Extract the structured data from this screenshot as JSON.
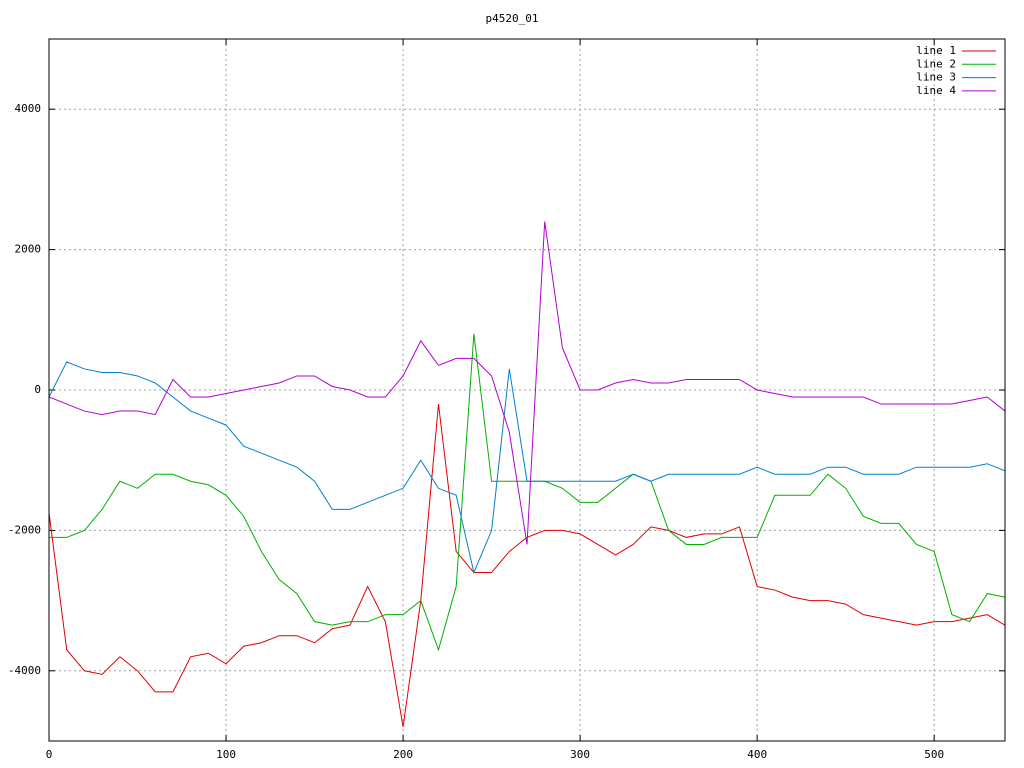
{
  "chart_data": {
    "type": "line",
    "title": "p4520_01",
    "x": [
      0,
      10,
      20,
      30,
      40,
      50,
      60,
      70,
      80,
      90,
      100,
      110,
      120,
      130,
      140,
      150,
      160,
      170,
      180,
      190,
      200,
      210,
      220,
      230,
      240,
      250,
      260,
      270,
      280,
      290,
      300,
      310,
      320,
      330,
      340,
      350,
      360,
      370,
      380,
      390,
      400,
      410,
      420,
      430,
      440,
      450,
      460,
      470,
      480,
      490,
      500,
      510,
      520,
      530,
      540
    ],
    "series": [
      {
        "name": "line 1",
        "color": "#e00000",
        "values": [
          -1750,
          -3700,
          -4000,
          -4050,
          -3800,
          -4000,
          -4300,
          -4300,
          -3800,
          -3750,
          -3900,
          -3650,
          -3600,
          -3500,
          -3500,
          -3600,
          -3400,
          -3350,
          -2800,
          -3300,
          -4800,
          -3000,
          -200,
          -2300,
          -2600,
          -2600,
          -2300,
          -2100,
          -2000,
          -2000,
          -2050,
          -2200,
          -2350,
          -2200,
          -1950,
          -2000,
          -2100,
          -2050,
          -2050,
          -1950,
          -2800,
          -2850,
          -2950,
          -3000,
          -3000,
          -3050,
          -3200,
          -3250,
          -3300,
          -3350,
          -3300,
          -3300,
          -3250,
          -3200,
          -3350
        ]
      },
      {
        "name": "line 2",
        "color": "#00b000",
        "values": [
          -2100,
          -2100,
          -2000,
          -1700,
          -1300,
          -1400,
          -1200,
          -1200,
          -1300,
          -1350,
          -1500,
          -1800,
          -2300,
          -2700,
          -2900,
          -3300,
          -3350,
          -3300,
          -3300,
          -3200,
          -3200,
          -3000,
          -3700,
          -2800,
          800,
          -1300,
          -1300,
          -1300,
          -1300,
          -1400,
          -1600,
          -1600,
          -1400,
          -1200,
          -1300,
          -2000,
          -2200,
          -2200,
          -2100,
          -2100,
          -2100,
          -1500,
          -1500,
          -1500,
          -1200,
          -1400,
          -1800,
          -1900,
          -1900,
          -2200,
          -2300,
          -3200,
          -3300,
          -2900,
          -2950
        ]
      },
      {
        "name": "line 3",
        "color": "#0080d0",
        "values": [
          -100,
          400,
          300,
          250,
          250,
          200,
          100,
          -100,
          -300,
          -400,
          -500,
          -800,
          -900,
          -1000,
          -1100,
          -1300,
          -1700,
          -1700,
          -1600,
          -1500,
          -1400,
          -1000,
          -1400,
          -1500,
          -2600,
          -2000,
          300,
          -1300,
          -1300,
          -1300,
          -1300,
          -1300,
          -1300,
          -1200,
          -1300,
          -1200,
          -1200,
          -1200,
          -1200,
          -1200,
          -1100,
          -1200,
          -1200,
          -1200,
          -1100,
          -1100,
          -1200,
          -1200,
          -1200,
          -1100,
          -1100,
          -1100,
          -1100,
          -1050,
          -1150
        ]
      },
      {
        "name": "line 4",
        "color": "#b000d0",
        "values": [
          -100,
          -200,
          -300,
          -350,
          -300,
          -300,
          -350,
          150,
          -100,
          -100,
          -50,
          0,
          50,
          100,
          200,
          200,
          50,
          0,
          -100,
          -100,
          200,
          700,
          350,
          450,
          450,
          200,
          -600,
          -2200,
          2400,
          600,
          0,
          0,
          100,
          150,
          100,
          100,
          150,
          150,
          150,
          150,
          0,
          -50,
          -100,
          -100,
          -100,
          -100,
          -100,
          -200,
          -200,
          -200,
          -200,
          -200,
          -150,
          -100,
          -300
        ]
      }
    ],
    "xlim": [
      0,
      540
    ],
    "ylim": [
      -5000,
      5000
    ],
    "xticks": [
      0,
      100,
      200,
      300,
      400,
      500
    ],
    "yticks": [
      -4000,
      -2000,
      0,
      2000,
      4000
    ],
    "grid": true,
    "legend": "top-right"
  }
}
